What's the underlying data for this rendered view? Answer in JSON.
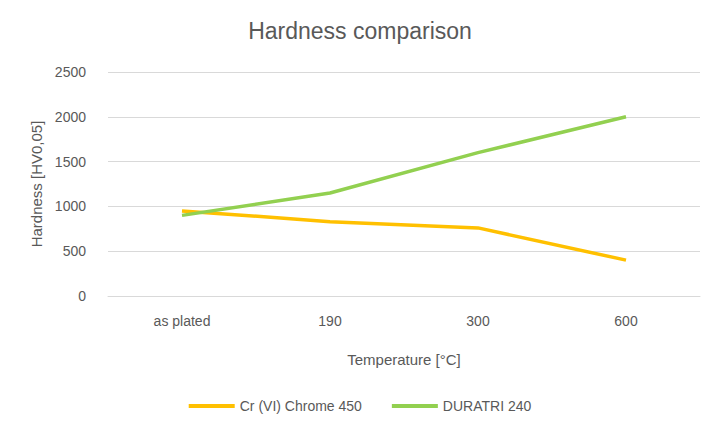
{
  "chart_data": {
    "type": "line",
    "title": "Hardness comparison",
    "x_label": "Temperature [°C]",
    "y_label": "Hardness [HV0,05]",
    "categories": [
      "as plated",
      "190",
      "300",
      "600"
    ],
    "series": [
      {
        "name": "Cr (VI) Chrome 450",
        "color": "#FFC000",
        "values": [
          950,
          830,
          760,
          400
        ]
      },
      {
        "name": "DURATRI 240",
        "color": "#92D050",
        "values": [
          900,
          1150,
          1600,
          2000
        ]
      }
    ],
    "ylim": [
      0,
      2500
    ],
    "yticks": [
      0,
      500,
      1000,
      1500,
      2000,
      2500
    ],
    "grid": true,
    "legend": "bottom"
  }
}
